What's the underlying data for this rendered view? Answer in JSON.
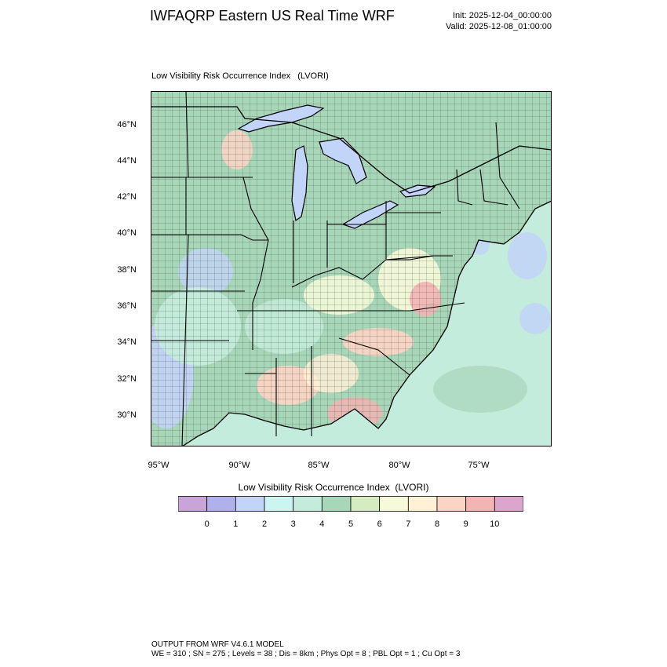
{
  "header": {
    "title": "IWFAQRP Eastern US Real Time WRF",
    "init": "Init: 2025-12-04_00:00:00",
    "valid": "Valid: 2025-12-08_01:00:00"
  },
  "map": {
    "subtitle": "Low Visibility Risk Occurrence Index   (LVORI)",
    "lat_labels": [
      "46°N",
      "44°N",
      "42°N",
      "40°N",
      "38°N",
      "36°N",
      "34°N",
      "32°N",
      "30°N"
    ],
    "lon_labels": [
      "95°W",
      "90°W",
      "85°W",
      "80°W",
      "75°W"
    ]
  },
  "colorbar": {
    "title": "Low Visibility Risk Occurrence Index  (LVORI)",
    "colors": [
      "#c8a4d8",
      "#b0b0ec",
      "#c2d4f8",
      "#cdf5ef",
      "#c4ecdc",
      "#a8d6b8",
      "#d4ecc0",
      "#f6fad8",
      "#fff0d6",
      "#fcd4c4",
      "#f2b4b4",
      "#dca6cc"
    ],
    "labels": [
      "0",
      "1",
      "2",
      "3",
      "4",
      "5",
      "6",
      "7",
      "8",
      "9",
      "10"
    ]
  },
  "footer": {
    "line1": "OUTPUT FROM WRF V4.6.1 MODEL",
    "line2": "WE = 310 ; SN = 275 ; Levels = 38 ; Dis = 8km ; Phys Opt = 8 ; PBL Opt = 1 ; Cu Opt = 3"
  }
}
